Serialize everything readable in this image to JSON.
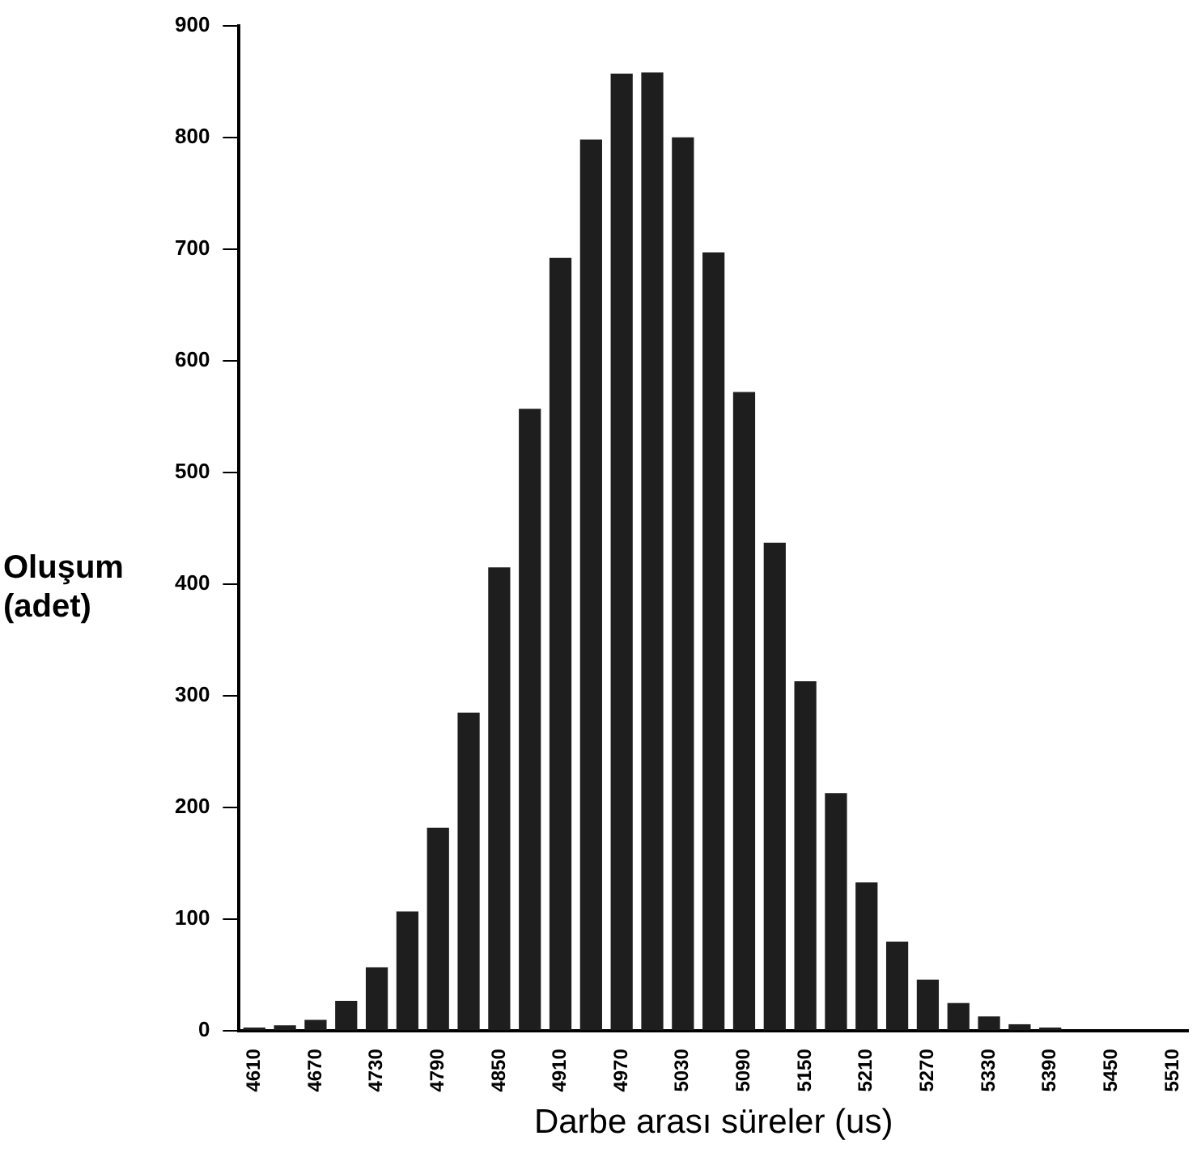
{
  "chart_data": {
    "type": "bar",
    "xlabel": "Darbe arası süreler (us)",
    "ylabel": "Oluşum (adet)",
    "categories": [
      "4610",
      null,
      "4670",
      null,
      "4730",
      null,
      "4790",
      null,
      "4850",
      null,
      "4910",
      null,
      "4970",
      null,
      "5030",
      null,
      "5090",
      null,
      "5150",
      null,
      "5210",
      null,
      "5270",
      null,
      "5330",
      null,
      "5390",
      null,
      "5450",
      null,
      "5510"
    ],
    "values": [
      3,
      5,
      10,
      27,
      57,
      107,
      182,
      285,
      415,
      557,
      692,
      798,
      857,
      858,
      800,
      697,
      572,
      437,
      313,
      213,
      133,
      80,
      46,
      25,
      13,
      6,
      3,
      null,
      null,
      null,
      null
    ],
    "color": "#1e1e1e",
    "ylim": [
      0,
      900
    ],
    "yticks": [
      0,
      100,
      200,
      300,
      400,
      500,
      600,
      700,
      800,
      900
    ],
    "grid": false,
    "legend": false
  }
}
